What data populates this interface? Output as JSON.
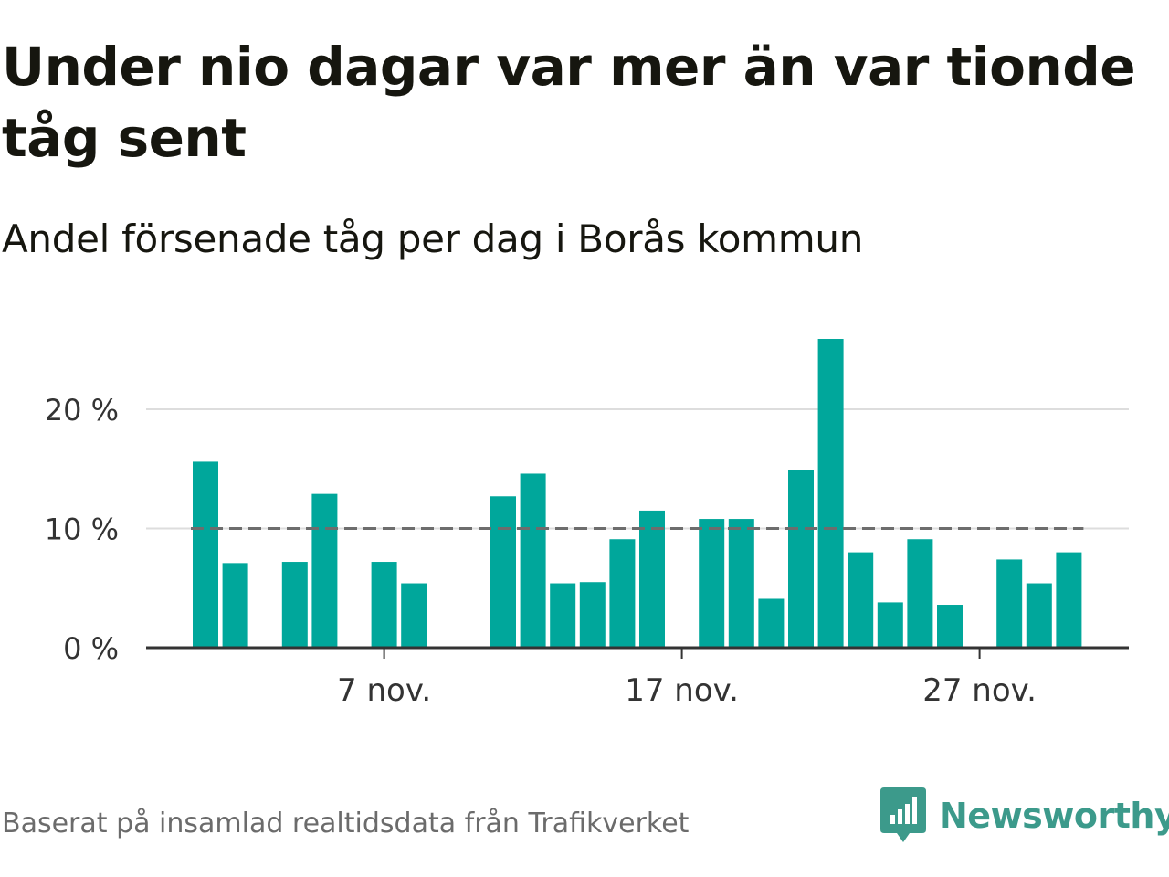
{
  "title": "Under nio dagar var mer än var tionde tåg sent",
  "subtitle": "Andel försenade tåg per dag i Borås kommun",
  "source": "Baserat på insamlad realtidsdata från Trafikverket",
  "brand": {
    "name": "Newsworthy",
    "icon": "newsworthy-chart-bubble-icon",
    "color": "#3c9a8b"
  },
  "colors": {
    "bar": "#00a79b",
    "reference": "#6d6d6d",
    "grid": "#dddddd",
    "axis": "#333333"
  },
  "chart_data": {
    "type": "bar",
    "x_type": "date",
    "x": [
      "2023-11-01",
      "2023-11-02",
      "2023-11-03",
      "2023-11-04",
      "2023-11-05",
      "2023-11-06",
      "2023-11-07",
      "2023-11-08",
      "2023-11-09",
      "2023-11-10",
      "2023-11-11",
      "2023-11-12",
      "2023-11-13",
      "2023-11-14",
      "2023-11-15",
      "2023-11-16",
      "2023-11-17",
      "2023-11-18",
      "2023-11-19",
      "2023-11-20",
      "2023-11-21",
      "2023-11-22",
      "2023-11-23",
      "2023-11-24",
      "2023-11-25",
      "2023-11-26",
      "2023-11-27",
      "2023-11-28",
      "2023-11-29",
      "2023-11-30"
    ],
    "values": [
      15.6,
      7.1,
      null,
      7.2,
      12.9,
      null,
      7.2,
      5.4,
      null,
      null,
      12.7,
      14.6,
      5.4,
      5.5,
      9.1,
      11.5,
      null,
      10.8,
      10.8,
      4.1,
      14.9,
      25.9,
      8.0,
      3.8,
      9.1,
      3.6,
      null,
      7.4,
      5.4,
      8.0
    ],
    "reference_line": {
      "value": 10,
      "style": "dashed"
    },
    "xticks": [
      {
        "x": "2023-11-07",
        "label": "7 nov."
      },
      {
        "x": "2023-11-17",
        "label": "17 nov."
      },
      {
        "x": "2023-11-27",
        "label": "27 nov."
      }
    ],
    "yticks": [
      {
        "value": 0,
        "label": "0 %"
      },
      {
        "value": 10,
        "label": "10 %"
      },
      {
        "value": 20,
        "label": "20 %"
      }
    ],
    "ylim": [
      0,
      27
    ],
    "grid": true,
    "legend": "none"
  }
}
